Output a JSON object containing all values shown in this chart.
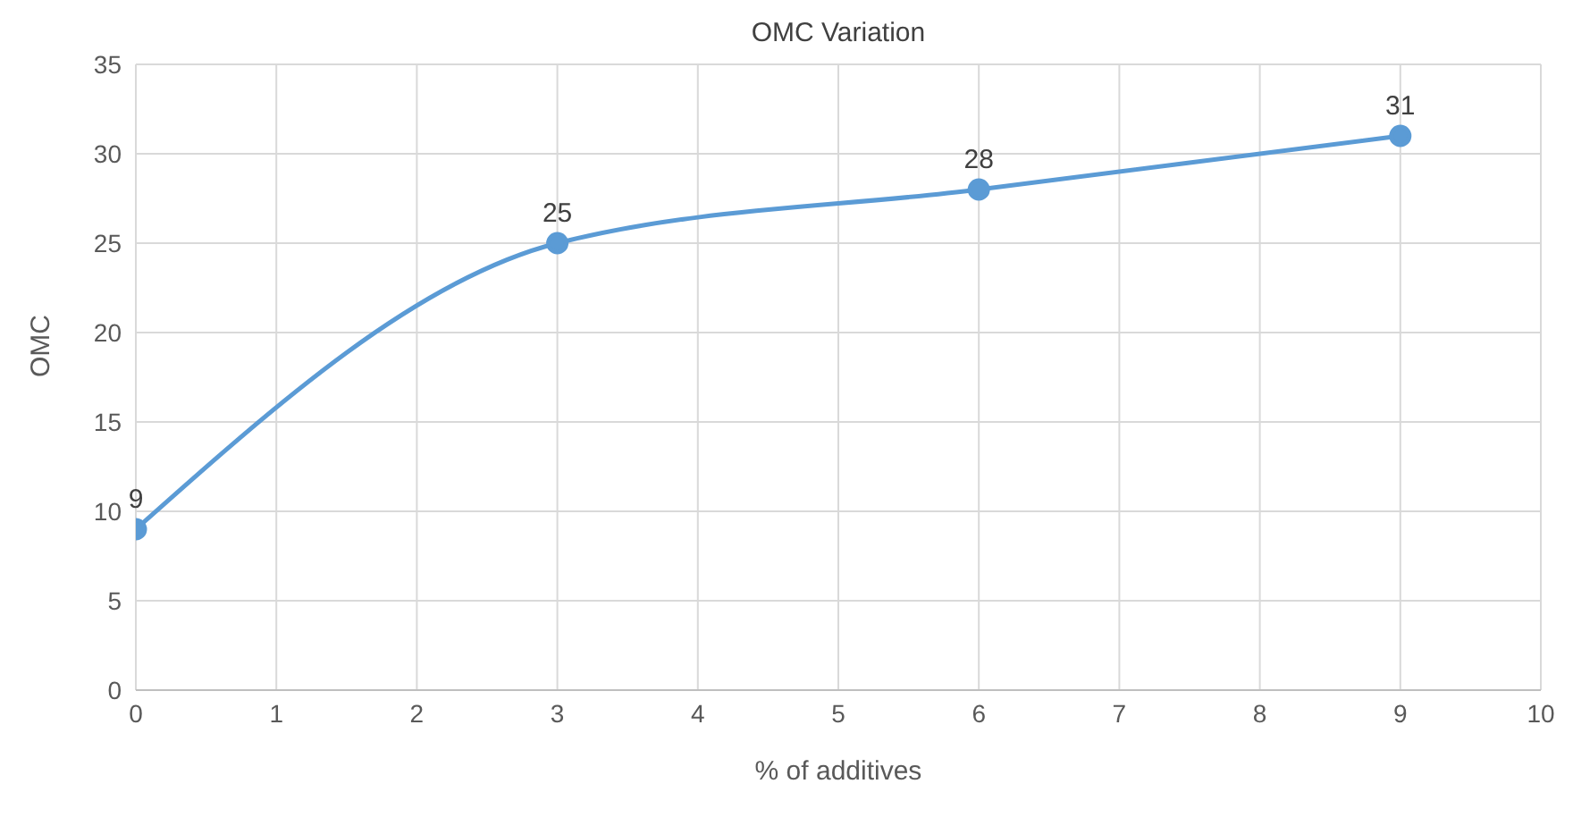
{
  "chart_data": {
    "type": "line",
    "title": "OMC Variation",
    "xlabel": "% of additives",
    "ylabel": "OMC",
    "x": [
      0,
      3,
      6,
      9
    ],
    "series": [
      {
        "color": "#5b9bd5",
        "values": [
          9,
          25,
          28,
          31
        ]
      }
    ],
    "xlim": [
      0,
      10
    ],
    "xticks": [
      0,
      1,
      2,
      3,
      4,
      5,
      6,
      7,
      8,
      9,
      10
    ],
    "ylim": [
      0,
      35
    ],
    "yticks": [
      0,
      5,
      10,
      15,
      20,
      25,
      30,
      35
    ],
    "grid": true,
    "marker": "circle",
    "data_labels": true
  }
}
